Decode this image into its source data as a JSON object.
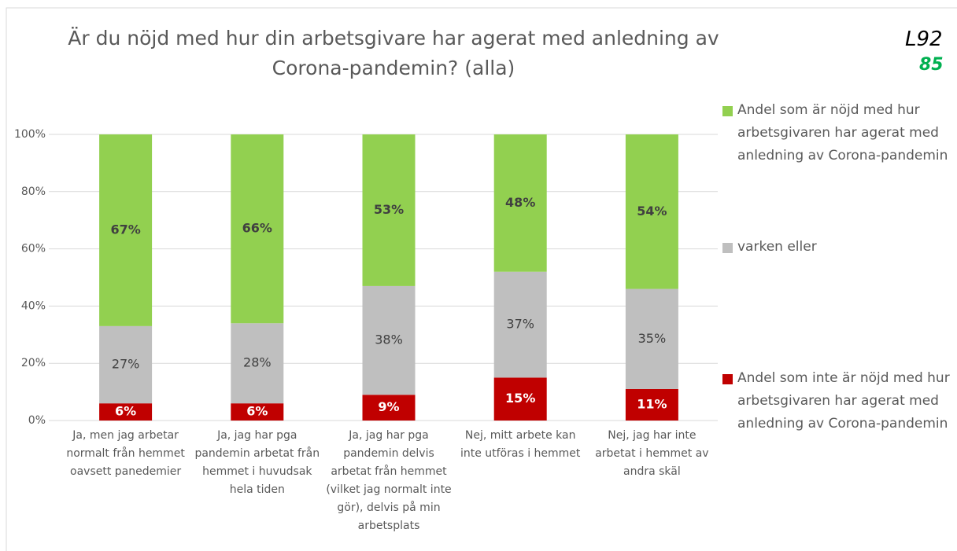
{
  "chart_data": {
    "type": "bar",
    "stacked": true,
    "title": "Är du nöjd med hur din arbetsgivare har agerat med anledning av Corona-pandemin? (alla)",
    "annotations": [
      "L92",
      "85"
    ],
    "categories": [
      "Ja, men jag arbetar normalt från hemmet oavsett panedemier",
      "Ja, jag har pga pandemin arbetat från hemmet i huvudsak hela tiden",
      "Ja, jag har pga pandemin delvis arbetat från hemmet (vilket jag normalt inte gör), delvis på min arbetsplats",
      "Nej, mitt arbete kan inte utföras i hemmet",
      "Nej, jag har inte arbetat i hemmet av andra skäl"
    ],
    "series": [
      {
        "name": "Andel som inte är nöjd med hur arbetsgivaren har agerat med anledning av Corona-pandemin",
        "color": "#c00000",
        "values": [
          6,
          6,
          9,
          15,
          11
        ],
        "value_labels": [
          "6%",
          "6%",
          "9%",
          "15%",
          "11%"
        ]
      },
      {
        "name": "varken eller",
        "color": "#bfbfbf",
        "values": [
          27,
          28,
          38,
          37,
          35
        ],
        "value_labels": [
          "27%",
          "28%",
          "38%",
          "37%",
          "35%"
        ]
      },
      {
        "name": "Andel som är nöjd med hur arbetsgivaren har agerat med anledning av Corona-pandemin",
        "color": "#92d050",
        "values": [
          67,
          66,
          53,
          48,
          54
        ],
        "value_labels": [
          "67%",
          "66%",
          "53%",
          "48%",
          "54%"
        ]
      }
    ],
    "ylim": [
      0,
      100
    ],
    "yticks": [
      {
        "value": 0,
        "label": "0%"
      },
      {
        "value": 20,
        "label": "20%"
      },
      {
        "value": 40,
        "label": "40%"
      },
      {
        "value": 60,
        "label": "60%"
      },
      {
        "value": 80,
        "label": "80%"
      },
      {
        "value": 100,
        "label": "100%"
      }
    ],
    "grid": true,
    "legend": "right"
  }
}
